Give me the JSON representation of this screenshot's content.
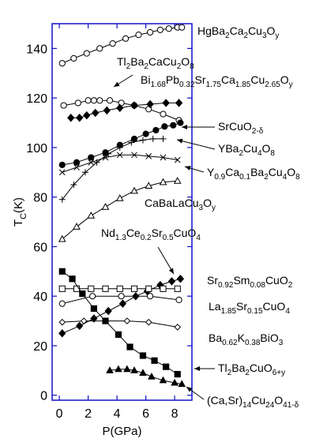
{
  "chart_data": {
    "type": "line",
    "xlabel": "P(GPa)",
    "ylabel_main": "T",
    "ylabel_sub": "C",
    "ylabel_tail": "(K)",
    "xlim": [
      -0.5,
      9.2
    ],
    "ylim": [
      -2,
      150
    ],
    "xticks": [
      0,
      2,
      4,
      6,
      8
    ],
    "yticks": [
      0,
      20,
      40,
      60,
      80,
      100,
      120,
      140
    ],
    "series": [
      {
        "name": "HgBa2Ca2Cu3Oy",
        "marker": "circle-open",
        "x": [
          0.2,
          1.0,
          1.9,
          2.8,
          3.7,
          4.6,
          5.5,
          6.3,
          7.0,
          7.6,
          8.2,
          8.5
        ],
        "y": [
          134,
          136,
          138,
          140,
          142,
          144,
          145.5,
          146.5,
          147.5,
          148,
          148.5,
          148.5
        ]
      },
      {
        "name": "Tl2Ba2CaCu2O8",
        "marker": "circle-open",
        "x": [
          0.3,
          1.3,
          2.0,
          2.4,
          2.8,
          3.5,
          4.3,
          5.2,
          6.2,
          7.2,
          8.3
        ],
        "y": [
          117,
          118,
          119,
          119,
          119,
          119,
          118,
          117,
          115.5,
          113.5,
          111
        ]
      },
      {
        "name": "Bi1.68Pb0.32Sr1.75Ca1.85Cu2.65Oy",
        "marker": "diamond-filled",
        "x": [
          0.8,
          1.4,
          1.9,
          2.5,
          3.3,
          4.2,
          5.2,
          6.3,
          7.4,
          8.3
        ],
        "y": [
          112,
          112,
          113,
          114,
          115,
          116,
          117,
          117.5,
          118,
          118
        ]
      },
      {
        "name": "SrCuO2-δ",
        "marker": "circle-filled",
        "x": [
          0.2,
          1.2,
          2.2,
          3.2,
          4.2,
          5.2,
          6.0,
          6.7,
          7.3,
          7.9,
          8.4
        ],
        "y": [
          93,
          94,
          96,
          98,
          101,
          103.5,
          105.5,
          107,
          108.5,
          109,
          110
        ]
      },
      {
        "name": "YBa2Cu4O8",
        "marker": "plus",
        "x": [
          0.2,
          1.0,
          1.8,
          2.6,
          3.4,
          4.2,
          5.0,
          5.8,
          6.5,
          7.2
        ],
        "y": [
          79,
          85,
          90,
          94,
          97.5,
          100,
          102,
          103,
          103.5,
          103.5
        ]
      },
      {
        "name": "Y0.9Ca0.1Ba2Cu4O8",
        "marker": "cross",
        "x": [
          0.2,
          1.2,
          2.2,
          3.2,
          4.2,
          5.2,
          6.2,
          7.2,
          8.2
        ],
        "y": [
          90,
          92,
          94,
          96,
          97,
          97,
          96.5,
          96,
          95
        ]
      },
      {
        "name": "CaBaLaCu3Oy",
        "marker": "triangle-open",
        "x": [
          0.2,
          1.2,
          2.2,
          3.2,
          4.2,
          5.2,
          6.2,
          7.2,
          8.2
        ],
        "y": [
          63,
          68,
          72.5,
          76,
          79.5,
          82.5,
          84.5,
          86,
          86.5
        ]
      },
      {
        "name": "Nd1.3Ce0.2Sr0.5CuO4",
        "marker": "diamond-filled",
        "x": [
          0.2,
          1.4,
          2.4,
          3.4,
          4.4,
          5.3,
          6.1,
          7.0,
          7.8,
          8.4
        ],
        "y": [
          25,
          28,
          31,
          34,
          37,
          40,
          42,
          44.5,
          46,
          47
        ]
      },
      {
        "name": "Sr0.92Sm0.08CuO2",
        "marker": "square-open",
        "x": [
          0.2,
          1.2,
          2.2,
          3.2,
          4.2,
          5.2,
          6.2,
          7.2,
          8.2
        ],
        "y": [
          43,
          43,
          43,
          43,
          43,
          43,
          43,
          43,
          43
        ]
      },
      {
        "name": "La1.85Sr0.15CuO4",
        "marker": "circle-open",
        "x": [
          0.2,
          2.3,
          4.3,
          6.3,
          8.3
        ],
        "y": [
          37,
          40,
          40,
          40,
          38.5
        ]
      },
      {
        "name": "Ba0.62K0.38BiO3",
        "marker": "diamond-open",
        "x": [
          0.2,
          1.7,
          3.2,
          4.7,
          6.2,
          8.2
        ],
        "y": [
          29.5,
          30,
          30,
          30,
          29.5,
          27.5
        ]
      },
      {
        "name": "Tl2Ba2CuO6+y",
        "marker": "square-filled",
        "x": [
          0.2,
          0.9,
          1.6,
          2.4,
          3.2,
          4.1,
          4.9,
          5.8,
          6.6,
          7.4,
          8.2
        ],
        "y": [
          50,
          47,
          41,
          35,
          30,
          24.5,
          19.5,
          16,
          14,
          11.5,
          8.5
        ]
      },
      {
        "name": "(Ca,Sr)14Cu24O41-δ",
        "marker": "triangle-filled",
        "x": [
          3.5,
          4.1,
          4.7,
          5.2,
          5.8,
          6.4,
          7.2,
          8.0,
          8.5
        ],
        "y": [
          10,
          10.5,
          10.5,
          10,
          9,
          7.5,
          6,
          5,
          4.5
        ]
      }
    ]
  },
  "labels": [
    {
      "key": "hg",
      "parts": [
        [
          "HgBa",
          "n"
        ],
        [
          "2",
          "b"
        ],
        [
          "Ca",
          "n"
        ],
        [
          "2",
          "b"
        ],
        [
          "Cu",
          "n"
        ],
        [
          "3",
          "b"
        ],
        [
          "O",
          "n"
        ],
        [
          "y",
          "b"
        ]
      ]
    },
    {
      "key": "tl2",
      "parts": [
        [
          "Tl",
          "n"
        ],
        [
          "2",
          "b"
        ],
        [
          "Ba",
          "n"
        ],
        [
          "2",
          "b"
        ],
        [
          "CaCu",
          "n"
        ],
        [
          "2",
          "b"
        ],
        [
          "O",
          "n"
        ],
        [
          "8",
          "b"
        ]
      ]
    },
    {
      "key": "bi",
      "parts": [
        [
          "Bi",
          "n"
        ],
        [
          "1.68",
          "b"
        ],
        [
          "Pb",
          "n"
        ],
        [
          "0.32",
          "b"
        ],
        [
          "Sr",
          "n"
        ],
        [
          "1.75",
          "b"
        ],
        [
          "Ca",
          "n"
        ],
        [
          "1.85",
          "b"
        ],
        [
          "Cu",
          "n"
        ],
        [
          "2.65",
          "b"
        ],
        [
          "O",
          "n"
        ],
        [
          "y",
          "b"
        ]
      ]
    },
    {
      "key": "sr",
      "parts": [
        [
          "SrCuO",
          "n"
        ],
        [
          "2-δ",
          "b"
        ]
      ]
    },
    {
      "key": "yba",
      "parts": [
        [
          "YBa",
          "n"
        ],
        [
          "2",
          "b"
        ],
        [
          "Cu",
          "n"
        ],
        [
          "4",
          "b"
        ],
        [
          "O",
          "n"
        ],
        [
          "8",
          "b"
        ]
      ]
    },
    {
      "key": "yca",
      "parts": [
        [
          "Y",
          "n"
        ],
        [
          "0.9",
          "b"
        ],
        [
          "Ca",
          "n"
        ],
        [
          "0.1",
          "b"
        ],
        [
          "Ba",
          "n"
        ],
        [
          "2",
          "b"
        ],
        [
          "Cu",
          "n"
        ],
        [
          "4",
          "b"
        ],
        [
          "O",
          "n"
        ],
        [
          "8",
          "b"
        ]
      ]
    },
    {
      "key": "caba",
      "parts": [
        [
          "CaBaLaCu",
          "n"
        ],
        [
          "3",
          "b"
        ],
        [
          "O",
          "n"
        ],
        [
          "y",
          "b"
        ]
      ]
    },
    {
      "key": "nd",
      "parts": [
        [
          "Nd",
          "n"
        ],
        [
          "1.3",
          "b"
        ],
        [
          "Ce",
          "n"
        ],
        [
          "0.2",
          "b"
        ],
        [
          "Sr",
          "n"
        ],
        [
          "0.5",
          "b"
        ],
        [
          "CuO",
          "n"
        ],
        [
          "4",
          "b"
        ]
      ]
    },
    {
      "key": "srsm",
      "parts": [
        [
          "Sr",
          "n"
        ],
        [
          "0.92",
          "b"
        ],
        [
          "Sm",
          "n"
        ],
        [
          "0.08",
          "b"
        ],
        [
          "CuO",
          "n"
        ],
        [
          "2",
          "b"
        ]
      ]
    },
    {
      "key": "la",
      "parts": [
        [
          "La",
          "n"
        ],
        [
          "1.85",
          "b"
        ],
        [
          "Sr",
          "n"
        ],
        [
          "0.15",
          "b"
        ],
        [
          "CuO",
          "n"
        ],
        [
          "4",
          "b"
        ]
      ]
    },
    {
      "key": "ba",
      "parts": [
        [
          "Ba",
          "n"
        ],
        [
          "0.62",
          "b"
        ],
        [
          "K",
          "n"
        ],
        [
          "0.38",
          "b"
        ],
        [
          "BiO",
          "n"
        ],
        [
          "3",
          "b"
        ]
      ]
    },
    {
      "key": "tl1",
      "parts": [
        [
          "Tl",
          "n"
        ],
        [
          "2",
          "b"
        ],
        [
          "Ba",
          "n"
        ],
        [
          "2",
          "b"
        ],
        [
          "CuO",
          "n"
        ],
        [
          "6+y",
          "b"
        ]
      ]
    },
    {
      "key": "ca",
      "parts": [
        [
          "(Ca,Sr)",
          "n"
        ],
        [
          "14",
          "b"
        ],
        [
          "Cu",
          "n"
        ],
        [
          "24",
          "b"
        ],
        [
          "O",
          "n"
        ],
        [
          "41-δ",
          "b"
        ]
      ]
    }
  ],
  "colors": {
    "frame": "#1010c8",
    "ink": "#000000"
  }
}
